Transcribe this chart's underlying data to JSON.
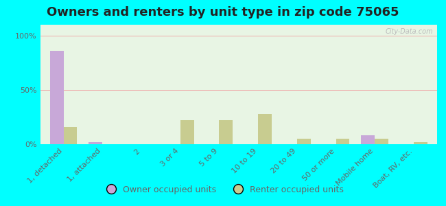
{
  "title": "Owners and renters by unit type in zip code 75065",
  "categories": [
    "1, detached",
    "1, attached",
    "2",
    "3 or 4",
    "5 to 9",
    "10 to 19",
    "20 to 49",
    "50 or more",
    "Mobile home",
    "Boat, RV, etc."
  ],
  "owner_values": [
    86,
    2,
    0,
    0,
    0,
    0,
    0,
    0,
    8,
    0
  ],
  "renter_values": [
    16,
    0,
    0,
    22,
    22,
    28,
    5,
    5,
    5,
    2
  ],
  "owner_color": "#c8a8d8",
  "renter_color": "#c8cc90",
  "plot_bg_color": "#e8f5e4",
  "bg_outer": "#00ffff",
  "yticks": [
    0,
    50,
    100
  ],
  "ylabels": [
    "0%",
    "50%",
    "100%"
  ],
  "bar_width": 0.35,
  "title_fontsize": 13,
  "tick_fontsize": 8,
  "legend_labels": [
    "Owner occupied units",
    "Renter occupied units"
  ],
  "watermark": "City-Data.com",
  "title_color": "#222222",
  "tick_color": "#666666"
}
